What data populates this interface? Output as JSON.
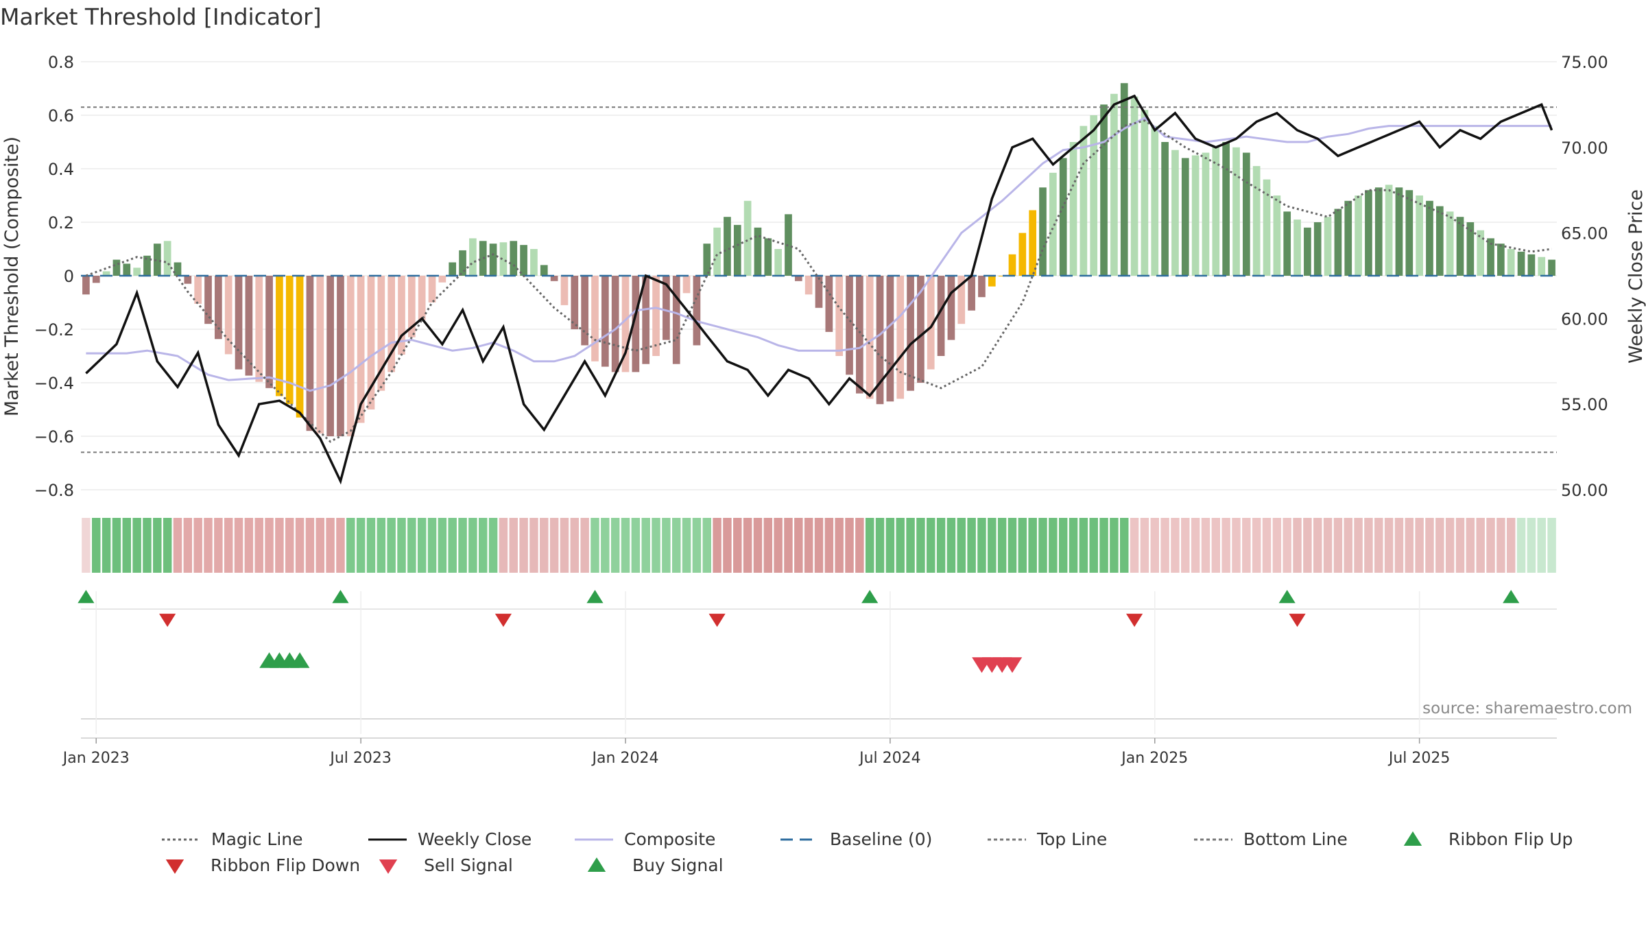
{
  "chart_data": {
    "type": "bar",
    "title": "Market Threshold [Indicator]",
    "ylabel_left": "Market Threshold (Composite)",
    "ylabel_right": "Weekly Close Price",
    "source": "source: sharemaestro.com",
    "left_axis": {
      "ylim": [
        -0.8,
        0.8
      ],
      "ticks": [
        "0.8",
        "0.6",
        "0.4",
        "0.2",
        "0",
        "−0.2",
        "−0.4",
        "−0.6",
        "−0.8"
      ]
    },
    "right_axis": {
      "ylim": [
        50,
        75
      ],
      "ticks": [
        "75.00",
        "70.00",
        "65.00",
        "60.00",
        "55.00",
        "50.00"
      ]
    },
    "x_ticks": [
      "Jan 2023",
      "Jul 2023",
      "Jan 2024",
      "Jul 2024",
      "Jan 2025",
      "Jul 2025"
    ],
    "x_tick_weeks": [
      1,
      27,
      53,
      79,
      105,
      131
    ],
    "weeks": 145,
    "top_line": 0.63,
    "bottom_line": -0.66,
    "composite_bars_control": [
      [
        0,
        -0.07
      ],
      [
        3,
        0.06
      ],
      [
        5,
        0.03
      ],
      [
        7,
        0.12
      ],
      [
        8,
        0.13
      ],
      [
        10,
        -0.03
      ],
      [
        12,
        -0.18
      ],
      [
        15,
        -0.35
      ],
      [
        18,
        -0.42
      ],
      [
        20,
        -0.48
      ],
      [
        22,
        -0.58
      ],
      [
        24,
        -0.6
      ],
      [
        26,
        -0.6
      ],
      [
        28,
        -0.5
      ],
      [
        30,
        -0.36
      ],
      [
        32,
        -0.23
      ],
      [
        34,
        -0.1
      ],
      [
        36,
        0.05
      ],
      [
        38,
        0.14
      ],
      [
        40,
        0.12
      ],
      [
        42,
        0.13
      ],
      [
        44,
        0.1
      ],
      [
        46,
        -0.02
      ],
      [
        48,
        -0.2
      ],
      [
        50,
        -0.32
      ],
      [
        52,
        -0.36
      ],
      [
        54,
        -0.36
      ],
      [
        56,
        -0.3
      ],
      [
        58,
        -0.18
      ],
      [
        60,
        0.05
      ],
      [
        62,
        0.18
      ],
      [
        64,
        0.26
      ],
      [
        66,
        0.18
      ],
      [
        68,
        0.1
      ],
      [
        70,
        -0.02
      ],
      [
        72,
        -0.12
      ],
      [
        74,
        -0.3
      ],
      [
        76,
        -0.44
      ],
      [
        78,
        -0.48
      ],
      [
        80,
        -0.46
      ],
      [
        82,
        -0.4
      ],
      [
        84,
        -0.3
      ],
      [
        86,
        -0.18
      ],
      [
        88,
        -0.08
      ],
      [
        90,
        0.0
      ],
      [
        92,
        0.16
      ],
      [
        94,
        0.33
      ],
      [
        96,
        0.44
      ],
      [
        98,
        0.56
      ],
      [
        100,
        0.64
      ],
      [
        102,
        0.72
      ],
      [
        104,
        0.62
      ],
      [
        106,
        0.5
      ],
      [
        108,
        0.44
      ],
      [
        110,
        0.46
      ],
      [
        112,
        0.5
      ],
      [
        114,
        0.46
      ],
      [
        116,
        0.36
      ],
      [
        118,
        0.24
      ],
      [
        120,
        0.18
      ],
      [
        122,
        0.22
      ],
      [
        124,
        0.28
      ],
      [
        126,
        0.32
      ],
      [
        128,
        0.34
      ],
      [
        130,
        0.32
      ],
      [
        132,
        0.28
      ],
      [
        134,
        0.24
      ],
      [
        136,
        0.2
      ],
      [
        138,
        0.14
      ],
      [
        140,
        0.1
      ],
      [
        142,
        0.08
      ],
      [
        144,
        0.06
      ]
    ],
    "composite_bars_override": {
      "58": -0.33,
      "60": -0.26,
      "61": 0.12,
      "64": 0.19,
      "65": 0.28,
      "69": 0.23
    },
    "highlight_weeks": [
      [
        19,
        21
      ],
      [
        89,
        93
      ]
    ],
    "magic_line_control": [
      [
        0,
        0.0
      ],
      [
        5,
        0.07
      ],
      [
        8,
        0.05
      ],
      [
        10,
        -0.06
      ],
      [
        14,
        -0.24
      ],
      [
        18,
        -0.4
      ],
      [
        22,
        -0.55
      ],
      [
        24,
        -0.62
      ],
      [
        26,
        -0.58
      ],
      [
        30,
        -0.36
      ],
      [
        34,
        -0.1
      ],
      [
        38,
        0.05
      ],
      [
        40,
        0.08
      ],
      [
        42,
        0.04
      ],
      [
        46,
        -0.12
      ],
      [
        50,
        -0.24
      ],
      [
        54,
        -0.28
      ],
      [
        58,
        -0.24
      ],
      [
        62,
        0.08
      ],
      [
        66,
        0.15
      ],
      [
        70,
        0.1
      ],
      [
        74,
        -0.12
      ],
      [
        78,
        -0.3
      ],
      [
        80,
        -0.36
      ],
      [
        84,
        -0.42
      ],
      [
        88,
        -0.34
      ],
      [
        92,
        -0.1
      ],
      [
        94,
        0.1
      ],
      [
        98,
        0.42
      ],
      [
        102,
        0.56
      ],
      [
        104,
        0.58
      ],
      [
        108,
        0.48
      ],
      [
        112,
        0.4
      ],
      [
        114,
        0.35
      ],
      [
        118,
        0.26
      ],
      [
        122,
        0.22
      ],
      [
        126,
        0.32
      ],
      [
        128,
        0.32
      ],
      [
        134,
        0.22
      ],
      [
        138,
        0.12
      ],
      [
        142,
        0.09
      ],
      [
        144,
        0.1
      ]
    ],
    "weekly_close_control": [
      [
        0,
        56.8
      ],
      [
        3,
        58.5
      ],
      [
        5,
        61.5
      ],
      [
        7,
        57.5
      ],
      [
        9,
        56.0
      ],
      [
        11,
        58.0
      ],
      [
        13,
        53.8
      ],
      [
        15,
        52.0
      ],
      [
        17,
        55.0
      ],
      [
        19,
        55.2
      ],
      [
        21,
        54.5
      ],
      [
        23,
        53.0
      ],
      [
        25,
        50.5
      ],
      [
        27,
        55.0
      ],
      [
        29,
        57.0
      ],
      [
        31,
        59.0
      ],
      [
        33,
        60.0
      ],
      [
        35,
        58.5
      ],
      [
        37,
        60.5
      ],
      [
        39,
        57.5
      ],
      [
        41,
        59.5
      ],
      [
        43,
        55.0
      ],
      [
        45,
        53.5
      ],
      [
        47,
        55.5
      ],
      [
        49,
        57.5
      ],
      [
        51,
        55.5
      ],
      [
        53,
        58.0
      ],
      [
        55,
        62.5
      ],
      [
        57,
        62.0
      ],
      [
        59,
        60.5
      ],
      [
        61,
        59.0
      ],
      [
        63,
        57.5
      ],
      [
        65,
        57.0
      ],
      [
        67,
        55.5
      ],
      [
        69,
        57.0
      ],
      [
        71,
        56.5
      ],
      [
        73,
        55.0
      ],
      [
        75,
        56.5
      ],
      [
        77,
        55.5
      ],
      [
        79,
        57.0
      ],
      [
        81,
        58.5
      ],
      [
        83,
        59.5
      ],
      [
        85,
        61.5
      ],
      [
        87,
        62.5
      ],
      [
        89,
        67.0
      ],
      [
        91,
        70.0
      ],
      [
        93,
        70.5
      ],
      [
        95,
        69.0
      ],
      [
        97,
        70.0
      ],
      [
        99,
        71.0
      ],
      [
        101,
        72.5
      ],
      [
        103,
        73.0
      ],
      [
        105,
        71.0
      ],
      [
        107,
        72.0
      ],
      [
        109,
        70.5
      ],
      [
        111,
        70.0
      ],
      [
        113,
        70.5
      ],
      [
        115,
        71.5
      ],
      [
        117,
        72.0
      ],
      [
        119,
        71.0
      ],
      [
        121,
        70.5
      ],
      [
        123,
        69.5
      ],
      [
        125,
        70.0
      ],
      [
        127,
        70.5
      ],
      [
        129,
        71.0
      ],
      [
        131,
        71.5
      ],
      [
        133,
        70.0
      ],
      [
        135,
        71.0
      ],
      [
        137,
        70.5
      ],
      [
        139,
        71.5
      ],
      [
        141,
        72.0
      ],
      [
        143,
        72.5
      ],
      [
        144,
        71.0
      ]
    ],
    "composite_line_control": [
      [
        0,
        -0.29
      ],
      [
        4,
        -0.29
      ],
      [
        6,
        -0.28
      ],
      [
        9,
        -0.3
      ],
      [
        12,
        -0.37
      ],
      [
        14,
        -0.39
      ],
      [
        18,
        -0.38
      ],
      [
        20,
        -0.4
      ],
      [
        22,
        -0.43
      ],
      [
        24,
        -0.41
      ],
      [
        26,
        -0.36
      ],
      [
        28,
        -0.3
      ],
      [
        30,
        -0.25
      ],
      [
        32,
        -0.24
      ],
      [
        34,
        -0.26
      ],
      [
        36,
        -0.28
      ],
      [
        38,
        -0.27
      ],
      [
        40,
        -0.25
      ],
      [
        42,
        -0.28
      ],
      [
        44,
        -0.32
      ],
      [
        46,
        -0.32
      ],
      [
        48,
        -0.3
      ],
      [
        50,
        -0.25
      ],
      [
        52,
        -0.2
      ],
      [
        54,
        -0.13
      ],
      [
        56,
        -0.12
      ],
      [
        58,
        -0.14
      ],
      [
        60,
        -0.17
      ],
      [
        62,
        -0.19
      ],
      [
        64,
        -0.21
      ],
      [
        66,
        -0.23
      ],
      [
        68,
        -0.26
      ],
      [
        70,
        -0.28
      ],
      [
        72,
        -0.28
      ],
      [
        74,
        -0.28
      ],
      [
        76,
        -0.27
      ],
      [
        78,
        -0.22
      ],
      [
        80,
        -0.15
      ],
      [
        82,
        -0.06
      ],
      [
        84,
        0.05
      ],
      [
        86,
        0.16
      ],
      [
        88,
        0.22
      ],
      [
        90,
        0.28
      ],
      [
        92,
        0.35
      ],
      [
        94,
        0.42
      ],
      [
        96,
        0.47
      ],
      [
        98,
        0.48
      ],
      [
        100,
        0.5
      ],
      [
        102,
        0.55
      ],
      [
        104,
        0.59
      ],
      [
        106,
        0.52
      ],
      [
        108,
        0.51
      ],
      [
        110,
        0.5
      ],
      [
        112,
        0.51
      ],
      [
        114,
        0.52
      ],
      [
        116,
        0.51
      ],
      [
        118,
        0.5
      ],
      [
        120,
        0.5
      ],
      [
        122,
        0.52
      ],
      [
        124,
        0.53
      ],
      [
        126,
        0.55
      ],
      [
        128,
        0.56
      ]
    ],
    "ribbon_segments": [
      {
        "from": 0,
        "to": 0,
        "color": "#f0d6d6"
      },
      {
        "from": 1,
        "to": 8,
        "color": "#6dbf7c"
      },
      {
        "from": 9,
        "to": 25,
        "color": "#e2a9a9"
      },
      {
        "from": 26,
        "to": 40,
        "color": "#7cc98c"
      },
      {
        "from": 41,
        "to": 49,
        "color": "#e6b8b8"
      },
      {
        "from": 50,
        "to": 61,
        "color": "#8fd19c"
      },
      {
        "from": 62,
        "to": 76,
        "color": "#d99a9a"
      },
      {
        "from": 77,
        "to": 102,
        "color": "#6dbf7c"
      },
      {
        "from": 103,
        "to": 118,
        "color": "#ecc4c4"
      },
      {
        "from": 119,
        "to": 140,
        "color": "#e8bdbd"
      },
      {
        "from": 141,
        "to": 144,
        "color": "#c8e8cf"
      }
    ],
    "ribbon_flip_up_weeks": [
      0,
      25,
      50,
      77,
      118,
      140
    ],
    "ribbon_flip_down_weeks": [
      8,
      41,
      62,
      103,
      119
    ],
    "buy_signal_weeks": [
      18,
      19,
      20,
      21
    ],
    "sell_signal_weeks": [
      88,
      89,
      90,
      91
    ],
    "legend": [
      "Magic Line",
      "Weekly Close",
      "Composite",
      "Baseline (0)",
      "Top Line",
      "Bottom Line",
      "Ribbon Flip Up",
      "Ribbon Flip Down",
      "Sell Signal",
      "Buy Signal"
    ],
    "colors": {
      "bar_pos_dark": "#5f8f5f",
      "bar_pos_light": "#b2dbb2",
      "bar_neg_dark": "#a87878",
      "bar_neg_light": "#ecbcb4",
      "bar_highlight": "#f5b800",
      "magic_line": "#666666",
      "weekly_close": "#111111",
      "composite": "#b9b5e8",
      "baseline": "#2d6c9e",
      "threshold": "#777777",
      "up_marker": "#2e9e4a",
      "down_marker": "#d12f2f",
      "sell_marker": "#e04050"
    }
  }
}
